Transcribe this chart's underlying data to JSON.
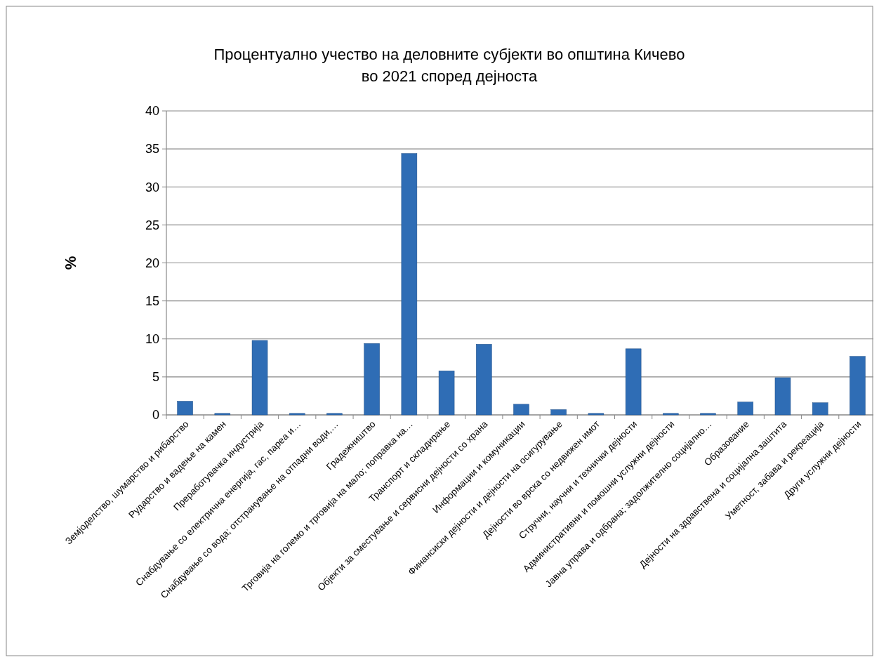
{
  "chart_data": {
    "type": "bar",
    "title": "Процентуално учество на деловните субјекти во општина Кичево во 2021 според дејноста",
    "ylabel": "%",
    "categories": [
      "Земјоделство, шумарство и рибарство",
      "Рударство и вадење на камен",
      "Преработувачка индустрија",
      "Снабдување со електрична енергија, гас, пареа и…",
      "Снабдување со вода; отстранување на отпадни води,…",
      "Градежништво",
      "Трговија на големо и трговија на мало; поправка на…",
      "Транспорт и складирање",
      "Објекти за сместување и сервисни дејности со храна",
      "Информации и комуникации",
      "Финансиски дејности и дејности на осигурување",
      "Дејности во врска со недвижен имот",
      "Стручни, научни и технички дејности",
      "Административни и помошни услужни дејности",
      "Јавна управа и одбрана; задолжително социјално…",
      "Образование",
      "Дејности на здравствена  и социјална заштита",
      "Уметност, забава и рекреација",
      "Други услужни дејности"
    ],
    "values": [
      1.8,
      0.2,
      9.8,
      0.2,
      0.2,
      9.4,
      34.4,
      5.8,
      9.3,
      1.4,
      0.7,
      0.2,
      8.7,
      0.2,
      0.2,
      1.7,
      4.9,
      1.6,
      7.7
    ],
    "color": "#2f6db5",
    "ylim": [
      0,
      40
    ],
    "yticks": [
      0,
      5,
      10,
      15,
      20,
      25,
      30,
      35,
      40
    ],
    "grid": "y"
  }
}
